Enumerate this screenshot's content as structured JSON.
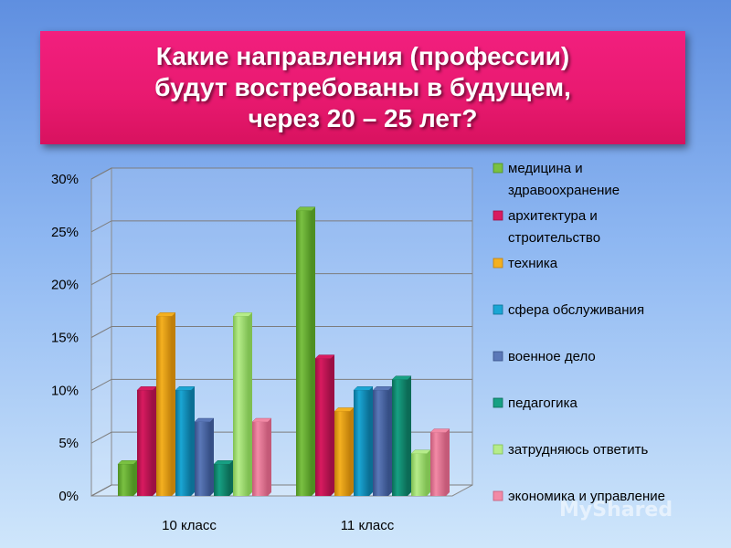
{
  "title": {
    "lines": [
      "Какие направления (профессии)",
      "будут востребованы в будущем,",
      "через 20 – 25 лет?"
    ]
  },
  "watermark": "MyShared",
  "chart_data": {
    "type": "bar",
    "categories": [
      "10 класс",
      "11 класс"
    ],
    "y_ticks": [
      "0%",
      "5%",
      "10%",
      "15%",
      "20%",
      "25%",
      "30%"
    ],
    "ylim": [
      0,
      30
    ],
    "unit": "%",
    "grid": true,
    "legend_position": "right",
    "series": [
      {
        "name": "медицина и здравоохранение",
        "legend_lines": [
          "медицина и",
          "здравоохранение"
        ],
        "values": [
          3,
          27
        ],
        "color": "#7ac142",
        "dark": "#4e8f22"
      },
      {
        "name": "архитектура и строительство",
        "legend_lines": [
          "архитектура и",
          "строительство"
        ],
        "values": [
          10,
          13
        ],
        "color": "#d81b60",
        "dark": "#9c0f44"
      },
      {
        "name": "техника",
        "legend_lines": [
          "техника"
        ],
        "values": [
          17,
          8
        ],
        "color": "#f4b020",
        "dark": "#c07f0a"
      },
      {
        "name": "сфера обслуживания",
        "legend_lines": [
          "сфера обслуживания"
        ],
        "values": [
          10,
          10
        ],
        "color": "#1aa6d4",
        "dark": "#0b6f94"
      },
      {
        "name": "военное дело",
        "legend_lines": [
          "военное дело"
        ],
        "values": [
          7,
          10
        ],
        "color": "#5b78b8",
        "dark": "#364f86"
      },
      {
        "name": "педагогика",
        "legend_lines": [
          "педагогика"
        ],
        "values": [
          3,
          11
        ],
        "color": "#17a083",
        "dark": "#0b6b56"
      },
      {
        "name": "затрудняюсь ответить",
        "legend_lines": [
          "затрудняюсь ответить"
        ],
        "values": [
          17,
          4
        ],
        "color": "#b6ec8a",
        "dark": "#7fbf52"
      },
      {
        "name": "экономика и управление",
        "legend_lines": [
          "экономика и управление"
        ],
        "values": [
          7,
          6
        ],
        "color": "#f28aa6",
        "dark": "#c45a78"
      }
    ]
  }
}
